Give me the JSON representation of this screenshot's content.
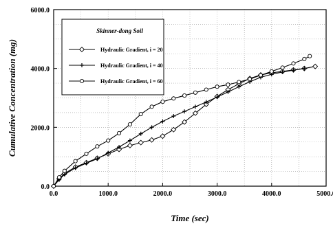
{
  "chart_data": {
    "type": "line",
    "xlabel": "Time (sec)",
    "ylabel": "Cumulative Concentration (mg)",
    "xlim": [
      0,
      5000
    ],
    "ylim": [
      0,
      6000
    ],
    "x_ticks": [
      "0.0",
      "1000.0",
      "2000.0",
      "3000.0",
      "4000.0",
      "5000.0"
    ],
    "y_ticks": [
      "0.0",
      "2000.0",
      "4000.0",
      "6000.0"
    ],
    "grid": true,
    "legend": {
      "title": "Skinner-dong Soil",
      "placement": "top-left"
    },
    "series": [
      {
        "name": "Hydraulic Gradient, i = 20",
        "marker": "diamond",
        "x": [
          0,
          100,
          200,
          400,
          600,
          800,
          1000,
          1200,
          1400,
          1600,
          1800,
          2000,
          2200,
          2400,
          2600,
          2800,
          3000,
          3200,
          3400,
          3600,
          3800,
          4000,
          4200,
          4400,
          4600,
          4800
        ],
        "y": [
          0,
          250,
          430,
          650,
          800,
          950,
          1100,
          1250,
          1380,
          1480,
          1570,
          1700,
          1920,
          2180,
          2480,
          2780,
          3050,
          3280,
          3480,
          3660,
          3780,
          3850,
          3900,
          3950,
          4000,
          4070
        ]
      },
      {
        "name": "Hydraulic Gradient, i = 40",
        "marker": "plus",
        "x": [
          0,
          100,
          200,
          400,
          600,
          800,
          1000,
          1200,
          1400,
          1600,
          1800,
          2000,
          2200,
          2400,
          2600,
          2800,
          3000,
          3200,
          3400,
          3600,
          3800,
          4000,
          4200,
          4400,
          4600
        ],
        "y": [
          0,
          220,
          400,
          620,
          780,
          930,
          1130,
          1330,
          1550,
          1780,
          2000,
          2200,
          2380,
          2540,
          2700,
          2860,
          3030,
          3200,
          3380,
          3550,
          3700,
          3800,
          3880,
          3940,
          4000
        ]
      },
      {
        "name": "Hydraulic Gradient, i = 60",
        "marker": "circle",
        "x": [
          0,
          100,
          200,
          400,
          600,
          800,
          1000,
          1200,
          1400,
          1600,
          1800,
          2000,
          2200,
          2400,
          2600,
          2800,
          3000,
          3200,
          3400,
          3600,
          3800,
          4000,
          4200,
          4400,
          4600,
          4700
        ],
        "y": [
          0,
          300,
          520,
          850,
          1100,
          1350,
          1550,
          1800,
          2100,
          2450,
          2700,
          2870,
          2980,
          3080,
          3180,
          3280,
          3380,
          3450,
          3540,
          3640,
          3770,
          3900,
          4030,
          4170,
          4320,
          4420
        ]
      }
    ]
  }
}
